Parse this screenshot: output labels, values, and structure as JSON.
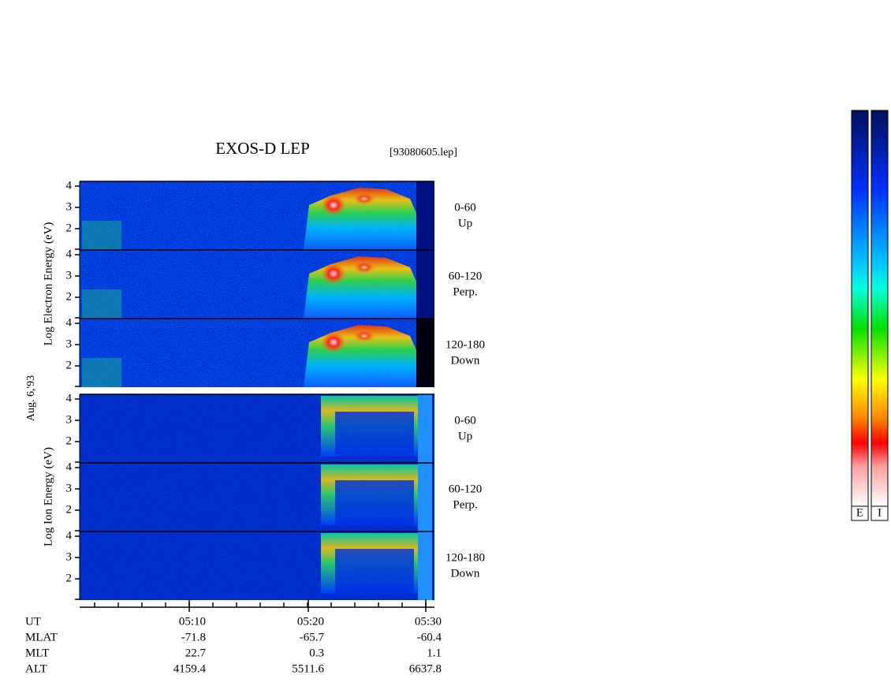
{
  "title": "EXOS-D LEP",
  "file": "[93080605.lep]",
  "electron_axis_label": "Log  Electron  Energy (eV)",
  "ion_axis_label": "Log  Ion  Energy (eV)",
  "date": "Aug. 6,'93",
  "panels": [
    {
      "angle": "0-60",
      "direction": "Up"
    },
    {
      "angle": "60-120",
      "direction": "Perp."
    },
    {
      "angle": "120-180",
      "direction": "Down"
    },
    {
      "angle": "0-60",
      "direction": "Up"
    },
    {
      "angle": "60-120",
      "direction": "Perp."
    },
    {
      "angle": "120-180",
      "direction": "Down"
    }
  ],
  "yticks": [
    4,
    3,
    2
  ],
  "orbit_table": {
    "time_label": "UT",
    "times": [
      "05:10",
      "05:20",
      "05:30"
    ],
    "labels": [
      "MLAT",
      "MLT",
      "ALT"
    ],
    "columns": [
      [
        -71.8,
        22.7,
        4159.4
      ],
      [
        -65.7,
        0.3,
        5511.6
      ],
      [
        -60.4,
        1.1,
        6637.8
      ]
    ]
  },
  "colorbar_labels": [
    "E",
    "I"
  ]
}
